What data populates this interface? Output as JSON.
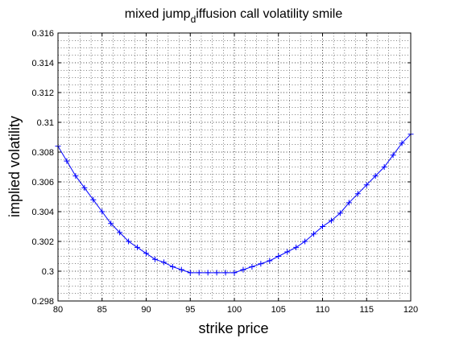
{
  "chart_data": {
    "type": "line",
    "title_main": "mixed jump",
    "title_sub": "d",
    "title_rest": "iffusion call volatility smile",
    "xlabel": "strike price",
    "ylabel": "implied volatility",
    "xlim": [
      80,
      120
    ],
    "ylim": [
      0.298,
      0.316
    ],
    "x_ticks": [
      "80",
      "85",
      "90",
      "95",
      "100",
      "105",
      "110",
      "115",
      "120"
    ],
    "y_ticks": [
      "0.298",
      "0.3",
      "0.302",
      "0.304",
      "0.306",
      "0.308",
      "0.31",
      "0.312",
      "0.314",
      "0.316"
    ],
    "grid": true,
    "grid_minor": true,
    "series": [
      {
        "color": "#0000ff",
        "marker": "+",
        "x": [
          80,
          81,
          82,
          83,
          84,
          85,
          86,
          87,
          88,
          89,
          90,
          91,
          92,
          93,
          94,
          95,
          96,
          97,
          98,
          99,
          100,
          101,
          102,
          103,
          104,
          105,
          106,
          107,
          108,
          109,
          110,
          111,
          112,
          113,
          114,
          115,
          116,
          117,
          118,
          119,
          120
        ],
        "y": [
          0.3084,
          0.3074,
          0.3064,
          0.3056,
          0.3048,
          0.304,
          0.3032,
          0.3026,
          0.302,
          0.3016,
          0.3012,
          0.3008,
          0.3006,
          0.3003,
          0.3001,
          0.2999,
          0.2999,
          0.2999,
          0.2999,
          0.2999,
          0.2999,
          0.3001,
          0.3003,
          0.3005,
          0.3007,
          0.301,
          0.3013,
          0.3016,
          0.302,
          0.3025,
          0.303,
          0.3034,
          0.3039,
          0.3046,
          0.3052,
          0.3058,
          0.3064,
          0.307,
          0.3078,
          0.3086,
          0.3092
        ]
      }
    ]
  }
}
